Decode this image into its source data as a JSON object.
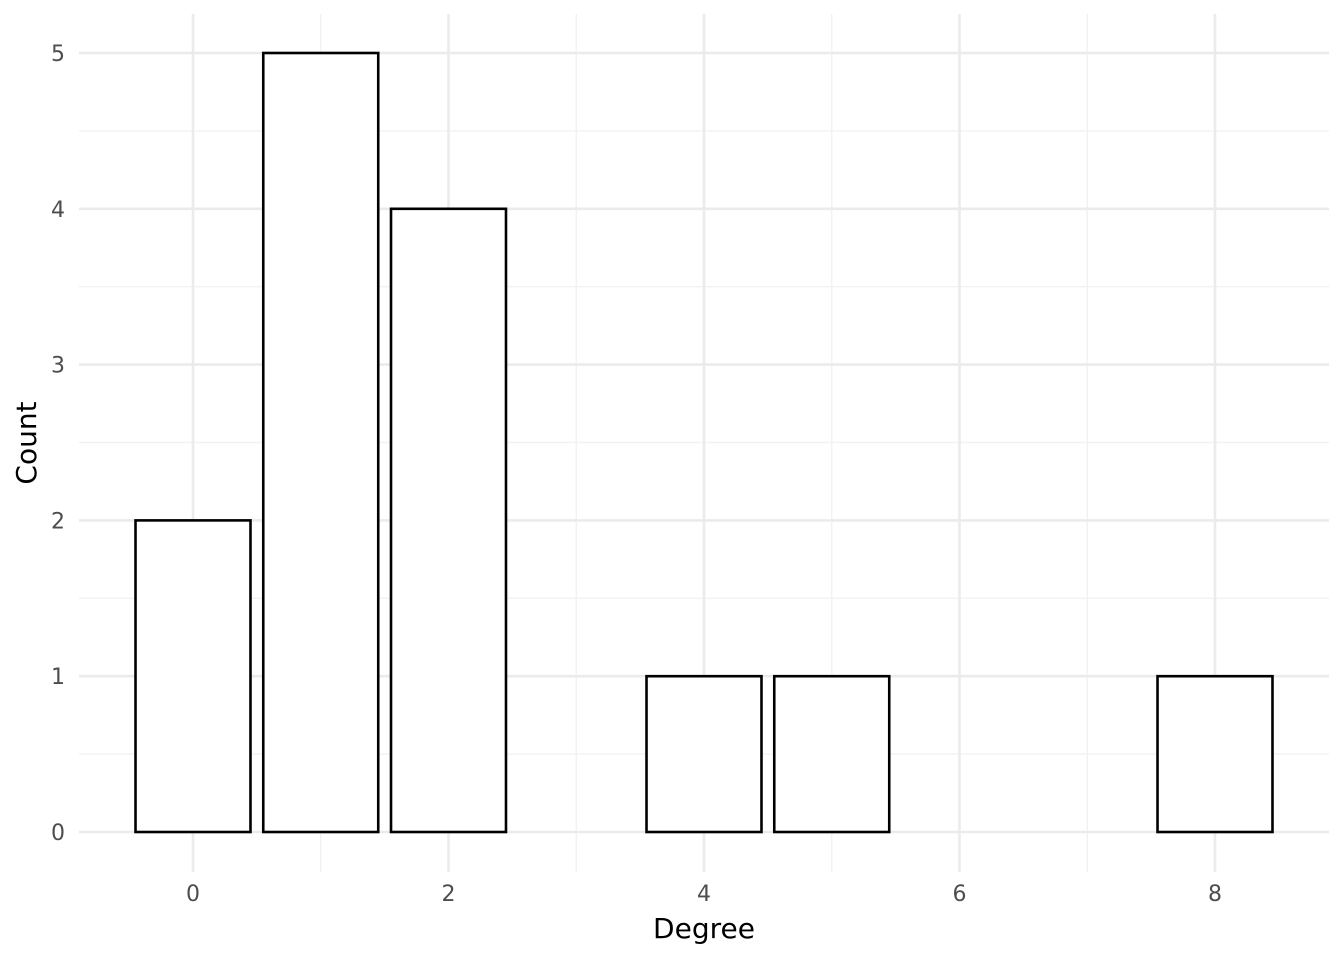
{
  "chart_data": {
    "type": "bar",
    "x": [
      0,
      1,
      2,
      4,
      5,
      8
    ],
    "values": [
      2,
      5,
      4,
      1,
      1,
      1
    ],
    "xlabel": "Degree",
    "ylabel": "Count",
    "xlim": [
      -0.9,
      8.9
    ],
    "ylim": [
      0,
      5.25
    ],
    "x_ticks": [
      0,
      2,
      4,
      6,
      8
    ],
    "y_ticks": [
      0,
      1,
      2,
      3,
      4,
      5
    ],
    "x_tick_labels": [
      "0",
      "2",
      "4",
      "6",
      "8"
    ],
    "y_tick_labels": [
      "0",
      "1",
      "2",
      "3",
      "4",
      "5"
    ],
    "grid": true,
    "legend": "none",
    "colors": {
      "bar_fill": "#ffffff",
      "bar_stroke": "#000000",
      "grid": "#ebebeb",
      "background": "#ffffff"
    }
  }
}
